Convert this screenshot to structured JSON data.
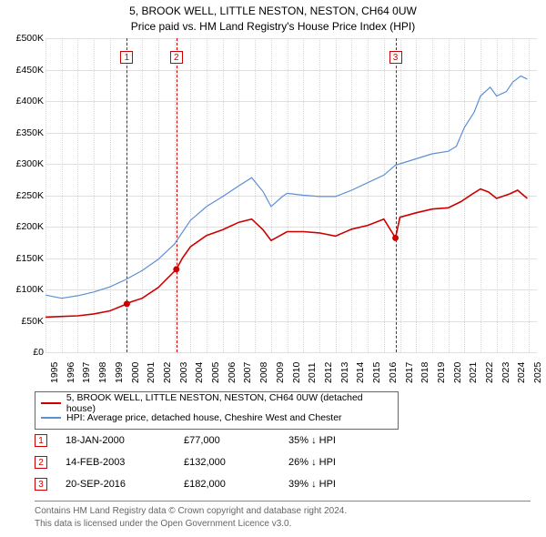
{
  "title": {
    "line1": "5, BROOK WELL, LITTLE NESTON, NESTON, CH64 0UW",
    "line2": "Price paid vs. HM Land Registry's House Price Index (HPI)"
  },
  "chart": {
    "type": "line",
    "background_color": "#ffffff",
    "grid_color": "#e0e0e0",
    "grid_dotted_color": "#d8d8d8",
    "x_range": [
      1995,
      2025.5
    ],
    "y_range": [
      0,
      500000
    ],
    "y_ticks": [
      0,
      50000,
      100000,
      150000,
      200000,
      250000,
      300000,
      350000,
      400000,
      450000,
      500000
    ],
    "y_tick_labels": [
      "£0",
      "£50K",
      "£100K",
      "£150K",
      "£200K",
      "£250K",
      "£300K",
      "£350K",
      "£400K",
      "£450K",
      "£500K"
    ],
    "x_ticks": [
      1995,
      1996,
      1997,
      1998,
      1999,
      2000,
      2001,
      2002,
      2003,
      2004,
      2005,
      2006,
      2007,
      2008,
      2009,
      2010,
      2011,
      2012,
      2013,
      2014,
      2015,
      2016,
      2017,
      2018,
      2019,
      2020,
      2021,
      2022,
      2023,
      2024,
      2025
    ],
    "axis_label_fontsize": 10.5,
    "axis_label_color": "#000000",
    "series": [
      {
        "name": "property",
        "label": "5, BROOK WELL, LITTLE NESTON, NESTON, CH64 0UW (detached house)",
        "color": "#cc0000",
        "line_width": 1.6,
        "data": [
          [
            1995,
            56000
          ],
          [
            1996,
            57000
          ],
          [
            1997,
            58000
          ],
          [
            1998,
            61000
          ],
          [
            1999,
            66000
          ],
          [
            2000.05,
            77000
          ],
          [
            2000.3,
            80000
          ],
          [
            2001,
            86000
          ],
          [
            2002,
            103000
          ],
          [
            2003.12,
            132000
          ],
          [
            2003.5,
            150000
          ],
          [
            2004,
            168000
          ],
          [
            2005,
            186000
          ],
          [
            2006,
            195000
          ],
          [
            2007,
            207000
          ],
          [
            2007.8,
            212000
          ],
          [
            2008.5,
            195000
          ],
          [
            2009,
            178000
          ],
          [
            2009.5,
            185000
          ],
          [
            2010,
            192000
          ],
          [
            2011,
            192000
          ],
          [
            2012,
            190000
          ],
          [
            2013,
            185000
          ],
          [
            2014,
            196000
          ],
          [
            2015,
            202000
          ],
          [
            2016,
            212000
          ],
          [
            2016.72,
            182000
          ],
          [
            2017,
            215000
          ],
          [
            2018,
            222000
          ],
          [
            2019,
            228000
          ],
          [
            2020,
            230000
          ],
          [
            2020.8,
            240000
          ],
          [
            2021.5,
            252000
          ],
          [
            2022,
            260000
          ],
          [
            2022.5,
            255000
          ],
          [
            2023,
            245000
          ],
          [
            2023.8,
            252000
          ],
          [
            2024.3,
            258000
          ],
          [
            2024.9,
            245000
          ]
        ]
      },
      {
        "name": "hpi",
        "label": "HPI: Average price, detached house, Cheshire West and Chester",
        "color": "#5b8fd6",
        "line_width": 1.2,
        "data": [
          [
            1995,
            91000
          ],
          [
            1996,
            86000
          ],
          [
            1997,
            90000
          ],
          [
            1998,
            96000
          ],
          [
            1999,
            104000
          ],
          [
            2000,
            116000
          ],
          [
            2001,
            130000
          ],
          [
            2002,
            148000
          ],
          [
            2003,
            172000
          ],
          [
            2004,
            210000
          ],
          [
            2005,
            232000
          ],
          [
            2006,
            248000
          ],
          [
            2007,
            265000
          ],
          [
            2007.8,
            278000
          ],
          [
            2008.5,
            256000
          ],
          [
            2009,
            232000
          ],
          [
            2009.7,
            248000
          ],
          [
            2010,
            253000
          ],
          [
            2011,
            250000
          ],
          [
            2012,
            248000
          ],
          [
            2013,
            248000
          ],
          [
            2014,
            258000
          ],
          [
            2015,
            270000
          ],
          [
            2016,
            282000
          ],
          [
            2016.72,
            298000
          ],
          [
            2017,
            300000
          ],
          [
            2018,
            308000
          ],
          [
            2019,
            316000
          ],
          [
            2020,
            320000
          ],
          [
            2020.5,
            328000
          ],
          [
            2021,
            358000
          ],
          [
            2021.6,
            382000
          ],
          [
            2022,
            408000
          ],
          [
            2022.6,
            422000
          ],
          [
            2023,
            408000
          ],
          [
            2023.6,
            415000
          ],
          [
            2024,
            430000
          ],
          [
            2024.5,
            440000
          ],
          [
            2024.9,
            435000
          ]
        ]
      }
    ]
  },
  "sale_markers": [
    {
      "index": "1",
      "x": 2000.05,
      "date": "18-JAN-2000",
      "price": "£77,000",
      "pct": "35% ↓ HPI",
      "line_color": "#cc0000"
    },
    {
      "index": "2",
      "x": 2003.12,
      "date": "14-FEB-2003",
      "price": "£132,000",
      "pct": "26% ↓ HPI",
      "line_color": "#cc0000"
    },
    {
      "index": "3",
      "x": 2016.72,
      "date": "20-SEP-2016",
      "price": "£182,000",
      "pct": "39% ↓ HPI",
      "line_color": "#cc0000"
    }
  ],
  "legend": {
    "border_color": "#666666"
  },
  "attribution": {
    "line1": "Contains HM Land Registry data © Crown copyright and database right 2024.",
    "line2": "This data is licensed under the Open Government Licence v3.0."
  }
}
